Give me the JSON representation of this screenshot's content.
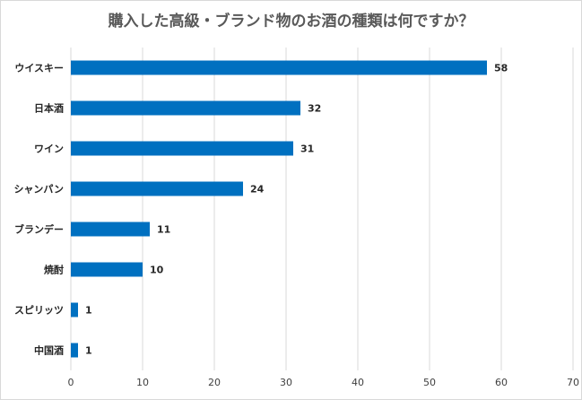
{
  "title": "購入した高級・ブランド物のお酒の種類は何ですか？",
  "colors": {
    "bar": "#0070c0",
    "grid": "#d9d9d9",
    "title": "#595959"
  },
  "chart_data": {
    "type": "bar",
    "orientation": "horizontal",
    "title": "購入した高級・ブランド物のお酒の種類は何ですか？",
    "categories": [
      "ウイスキー",
      "日本酒",
      "ワイン",
      "シャンパン",
      "ブランデー",
      "焼酎",
      "スピリッツ",
      "中国酒"
    ],
    "values": [
      58,
      32,
      31,
      24,
      11,
      10,
      1,
      1
    ],
    "xlim": [
      0,
      70
    ],
    "xticks": [
      0,
      10,
      20,
      30,
      40,
      50,
      60,
      70
    ],
    "xlabel": "",
    "ylabel": "",
    "grid": "vertical",
    "legend": "none"
  }
}
